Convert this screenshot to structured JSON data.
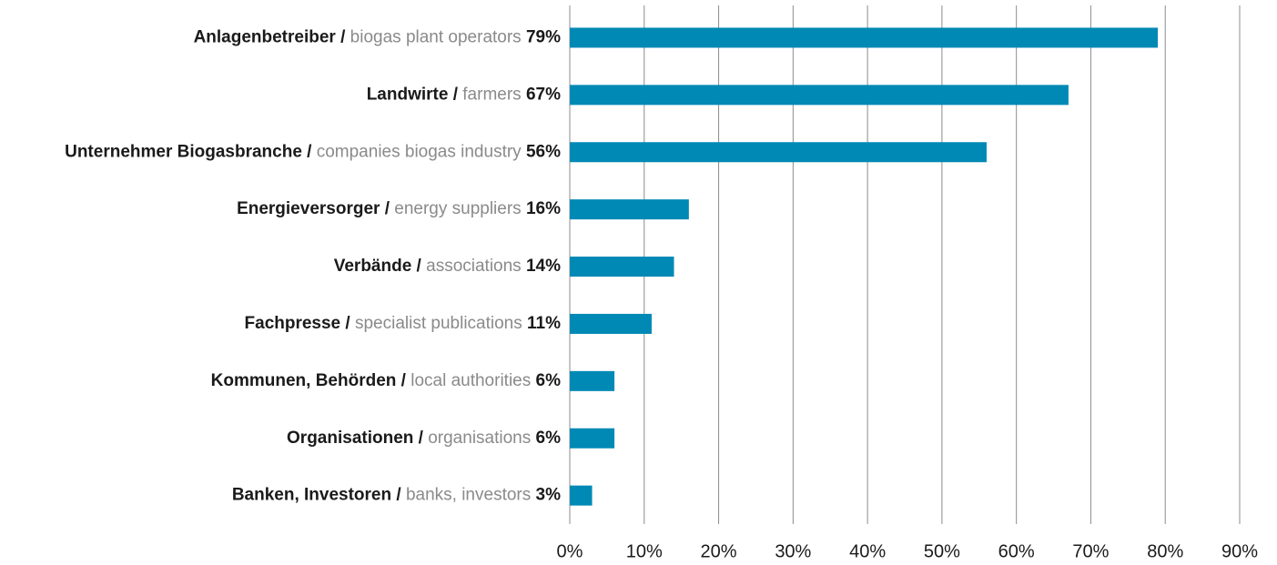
{
  "chart_data": {
    "type": "bar",
    "orientation": "horizontal",
    "categories": [
      "Anlagenbetreiber /",
      "Landwirte /",
      "Unternehmer Biogasbranche /",
      "Energieversorger /",
      "Verbände /",
      "Fachpresse /",
      "Kommunen, Behörden /",
      "Organisationen /",
      "Banken, Investoren /"
    ],
    "categories_en": [
      "biogas plant operators",
      "farmers",
      "companies biogas industry",
      "energy suppliers",
      "associations",
      "specialist publications",
      "local authorities",
      "organisations",
      "banks, investors"
    ],
    "values": [
      79,
      67,
      56,
      16,
      14,
      11,
      6,
      6,
      3
    ],
    "value_labels": [
      "79%",
      "67%",
      "56%",
      "16%",
      "14%",
      "11%",
      "6%",
      "6%",
      "3%"
    ],
    "color": "#0089b5",
    "xlim": [
      0,
      90
    ],
    "xticks": [
      {
        "value": 0,
        "label": "0%"
      },
      {
        "value": 10,
        "label": "10%"
      },
      {
        "value": 20,
        "label": "20%"
      },
      {
        "value": 30,
        "label": "30%"
      },
      {
        "value": 40,
        "label": "40%"
      },
      {
        "value": 50,
        "label": "50%"
      },
      {
        "value": 60,
        "label": "60%"
      },
      {
        "value": 70,
        "label": "70%"
      },
      {
        "value": 80,
        "label": "80%"
      },
      {
        "value": 90,
        "label": "90%"
      }
    ],
    "grid": true
  }
}
